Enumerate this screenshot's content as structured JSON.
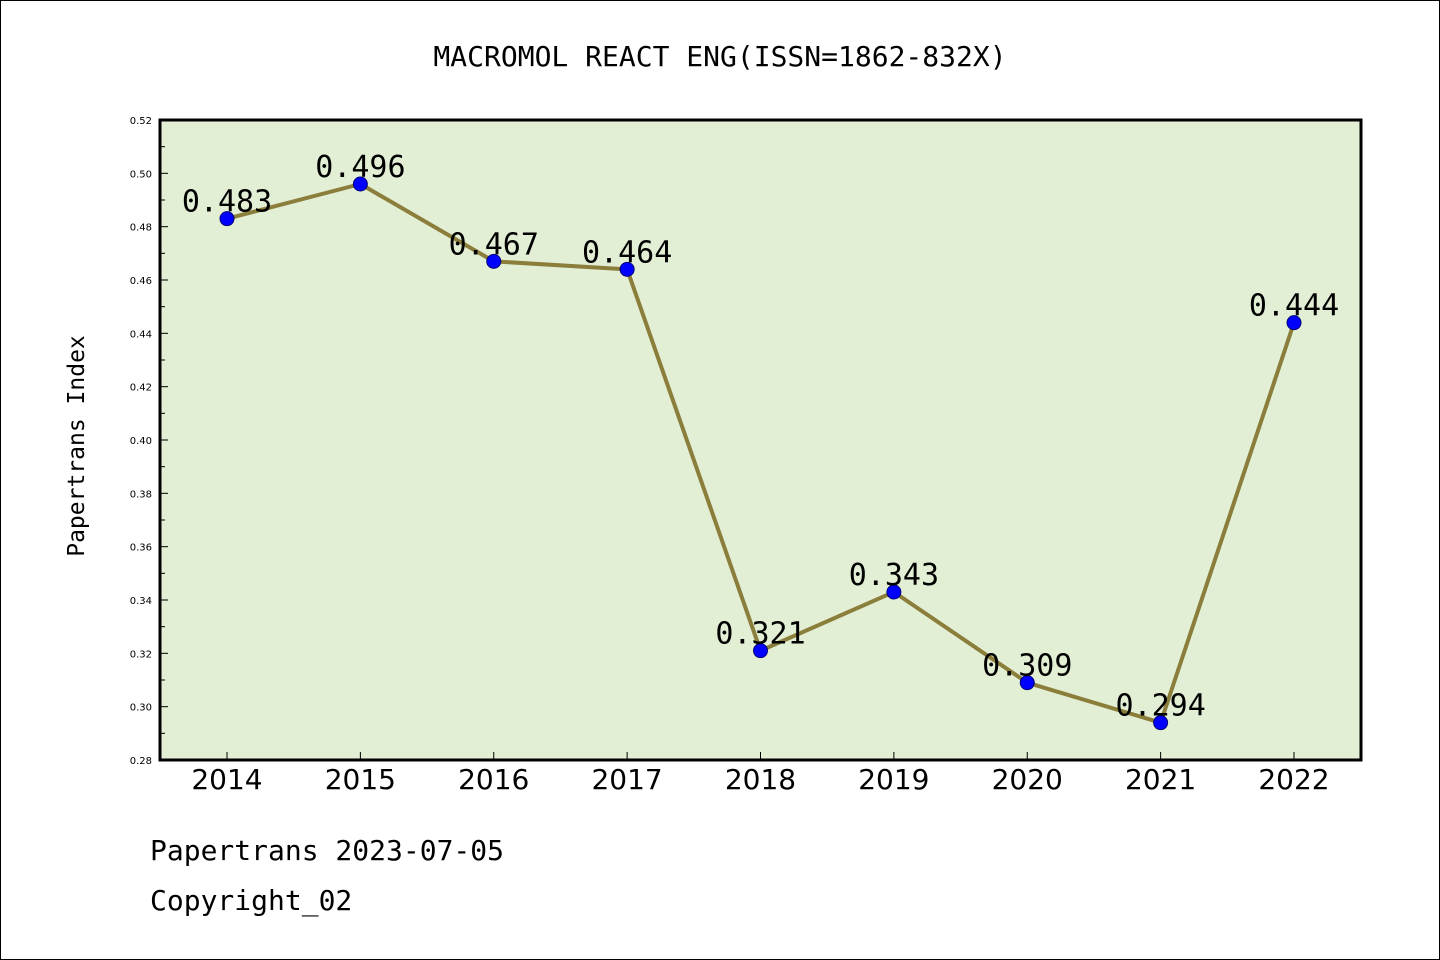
{
  "chart_data": {
    "type": "line",
    "title": "MACROMOL REACT ENG(ISSN=1862-832X)",
    "xlabel": "",
    "ylabel": "Papertrans Index",
    "categories": [
      "2014",
      "2015",
      "2016",
      "2017",
      "2018",
      "2019",
      "2020",
      "2021",
      "2022"
    ],
    "series": [
      {
        "values": [
          0.483,
          0.496,
          0.467,
          0.464,
          0.321,
          0.343,
          0.309,
          0.294,
          0.444
        ],
        "data_labels": [
          "0.483",
          "0.496",
          "0.467",
          "0.464",
          "0.321",
          "0.343",
          "0.309",
          "0.294",
          "0.444"
        ]
      }
    ],
    "ylim": [
      0.28,
      0.52
    ],
    "yticks": [
      "0.28",
      "0.30",
      "0.32",
      "0.34",
      "0.36",
      "0.38",
      "0.40",
      "0.42",
      "0.44",
      "0.46",
      "0.48",
      "0.50",
      "0.52"
    ],
    "grid": false,
    "legend": "none",
    "colors": {
      "plot_background": "#e2efd5",
      "line": "#8b7d3a",
      "marker": "#0000ff"
    }
  },
  "footer": {
    "source": "Papertrans 2023-07-05",
    "copyright": "Copyright_02"
  }
}
